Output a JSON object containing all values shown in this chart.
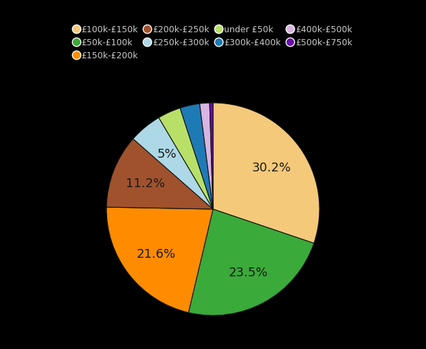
{
  "background_color": "#000000",
  "text_color": "#cccccc",
  "slices": [
    {
      "label": "£100k-£150k",
      "value": 30.2,
      "color": "#f5c97a"
    },
    {
      "label": "£50k-£100k",
      "value": 23.5,
      "color": "#3aaa3a"
    },
    {
      "label": "£150k-£200k",
      "value": 21.6,
      "color": "#ff8c00"
    },
    {
      "label": "£200k-£250k",
      "value": 11.2,
      "color": "#a0522d"
    },
    {
      "label": "£250k-£300k",
      "value": 5.0,
      "color": "#add8e6"
    },
    {
      "label": "under £50k",
      "value": 3.5,
      "color": "#b8e068"
    },
    {
      "label": "£300k-£400k",
      "value": 3.0,
      "color": "#1e7ab5"
    },
    {
      "label": "£400k-£500k",
      "value": 1.5,
      "color": "#d8b4e2"
    },
    {
      "label": "£500k-£750k",
      "value": 0.5,
      "color": "#6a0dad"
    }
  ],
  "legend_rows": [
    [
      "£100k-£150k",
      "£50k-£100k",
      "£150k-£200k",
      "£200k-£250k"
    ],
    [
      "£250k-£300k",
      "under £50k",
      "£300k-£400k",
      "£400k-£500k"
    ],
    [
      "£500k-£750k"
    ]
  ],
  "autopct_labels": {
    "£100k-£150k": "30.2%",
    "£50k-£100k": "23.5%",
    "£150k-£200k": "21.6%",
    "£200k-£250k": "11.2%",
    "£250k-£300k": "5%"
  }
}
